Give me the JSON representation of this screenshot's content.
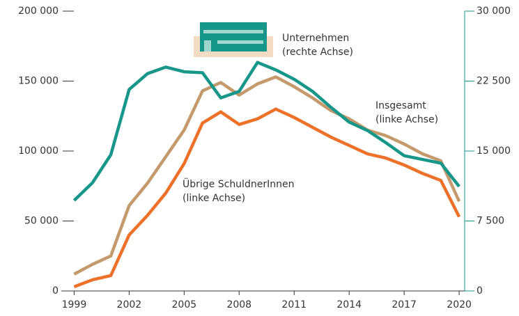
{
  "chart_data": {
    "type": "line",
    "x": [
      1999,
      2000,
      2001,
      2002,
      2003,
      2004,
      2005,
      2006,
      2007,
      2008,
      2009,
      2010,
      2011,
      2012,
      2013,
      2014,
      2015,
      2016,
      2017,
      2018,
      2019,
      2020
    ],
    "series": [
      {
        "name": "Insgesamt",
        "color": "#c49a6c",
        "values": [
          12000,
          19000,
          25000,
          61000,
          77000,
          96000,
          115000,
          143000,
          149000,
          140000,
          148000,
          153000,
          146000,
          138000,
          129000,
          123000,
          115000,
          111000,
          105000,
          98000,
          93000,
          64000
        ]
      },
      {
        "name": "Übrige SchuldnerInnen",
        "color": "#ee7129",
        "values": [
          3000,
          8000,
          11000,
          40000,
          54000,
          70000,
          91000,
          120000,
          128000,
          119000,
          123000,
          130000,
          124000,
          117000,
          110000,
          104000,
          98000,
          95000,
          90000,
          84000,
          79000,
          53000
        ]
      },
      {
        "name": "Unternehmen",
        "color": "#17968a",
        "axis": "y2",
        "values": [
          9700,
          11600,
          14600,
          21600,
          23300,
          24000,
          23500,
          23400,
          20700,
          21400,
          24500,
          23700,
          22700,
          21400,
          19700,
          18100,
          17200,
          15900,
          14500,
          14100,
          13700,
          11200
        ]
      }
    ],
    "annotations": [
      {
        "lines": [
          "Unternehmen",
          "(rechte Achse)"
        ],
        "series": 2
      },
      {
        "lines": [
          "Insgesamt",
          "(linke Achse)"
        ],
        "series": 0
      },
      {
        "lines": [
          "Übrige SchuldnerInnen",
          "(linke Achse)"
        ],
        "series": 1
      }
    ],
    "xlim": [
      1998.3,
      2020.3
    ],
    "xticks": [
      1999,
      2002,
      2005,
      2008,
      2011,
      2014,
      2017,
      2020
    ],
    "ylim": [
      0,
      200000
    ],
    "yticks": [
      0,
      {
        "value": 50000,
        "label": "50 000"
      },
      {
        "value": 100000,
        "label": "100 000"
      },
      {
        "value": 150000,
        "label": "150 000"
      },
      {
        "value": 200000,
        "label": "200 000"
      }
    ],
    "y2lim": [
      0,
      30000
    ],
    "y2ticks": [
      0,
      {
        "value": 7500,
        "label": "7 500"
      },
      {
        "value": 15000,
        "label": "15 000"
      },
      {
        "value": 22500,
        "label": "22 500"
      },
      {
        "value": 30000,
        "label": "30 000"
      }
    ]
  }
}
